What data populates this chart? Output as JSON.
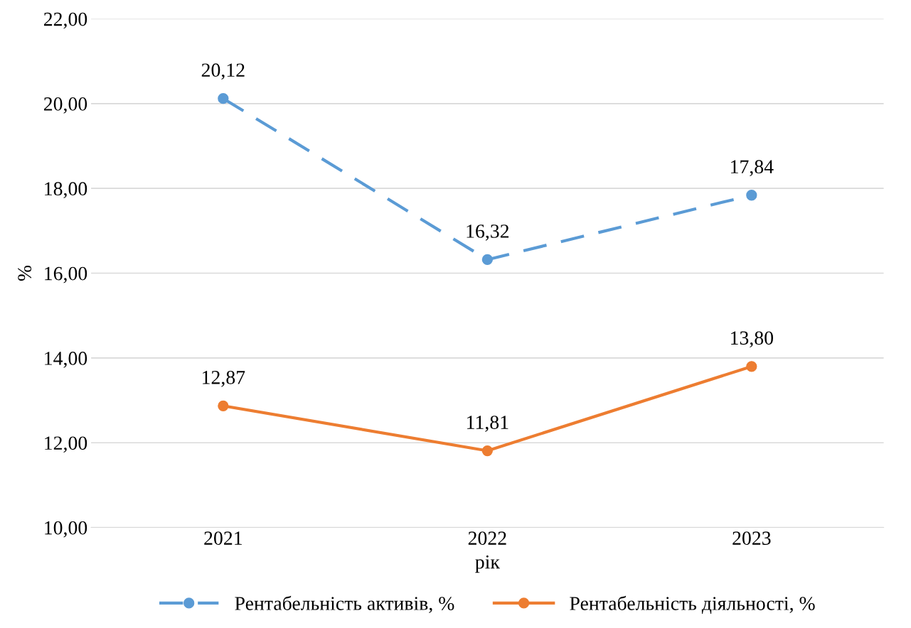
{
  "chart_data": {
    "type": "line",
    "xlabel": "рік",
    "ylabel": "%",
    "categories": [
      "2021",
      "2022",
      "2023"
    ],
    "series": [
      {
        "name": "Рентабельність активів, %",
        "color": "#5b9bd5",
        "values": [
          20.12,
          16.32,
          17.84
        ],
        "value_labels": [
          "20,12",
          "16,32",
          "17,84"
        ],
        "line_style": "dashed"
      },
      {
        "name": "Рентабельність діяльності, %",
        "color": "#ed7d31",
        "values": [
          12.87,
          11.81,
          13.8
        ],
        "value_labels": [
          "12,87",
          "11,81",
          "13,80"
        ],
        "line_style": "solid"
      }
    ],
    "ylim": [
      10,
      22
    ],
    "yticks": [
      {
        "value": 10,
        "label": "10,00"
      },
      {
        "value": 12,
        "label": "12,00"
      },
      {
        "value": 14,
        "label": "14,00"
      },
      {
        "value": 16,
        "label": "16,00"
      },
      {
        "value": 18,
        "label": "18,00"
      },
      {
        "value": 20,
        "label": "20,00"
      },
      {
        "value": 22,
        "label": "22,00"
      }
    ],
    "grid": "y",
    "legend": "bottom",
    "marker": "circle"
  }
}
